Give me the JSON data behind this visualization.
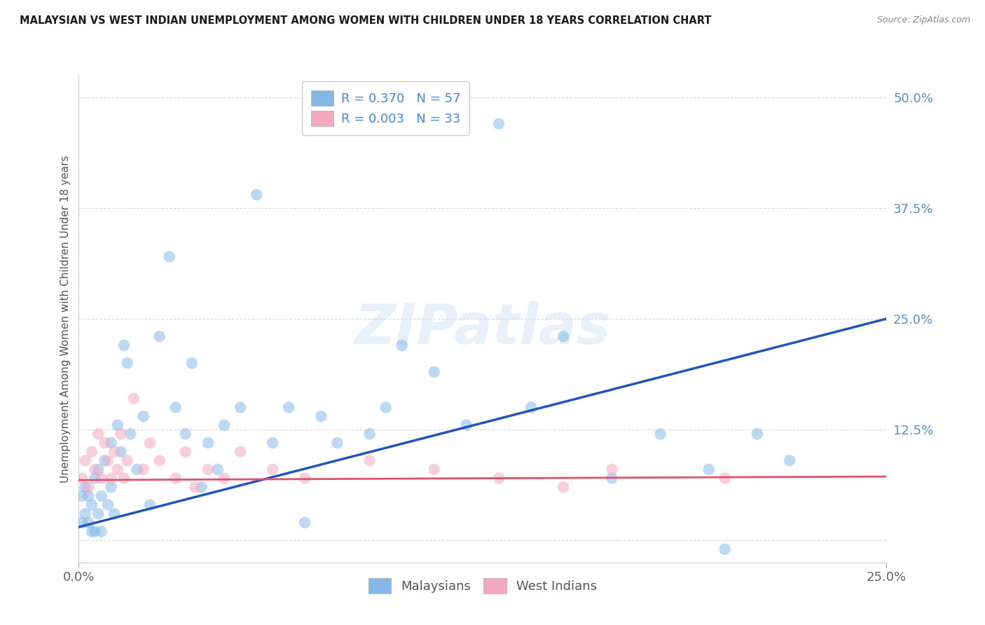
{
  "title": "MALAYSIAN VS WEST INDIAN UNEMPLOYMENT AMONG WOMEN WITH CHILDREN UNDER 18 YEARS CORRELATION CHART",
  "source": "Source: ZipAtlas.com",
  "ylabel": "Unemployment Among Women with Children Under 18 years",
  "xlim": [
    0.0,
    0.25
  ],
  "ylim": [
    -0.025,
    0.525
  ],
  "ytick_values": [
    0.0,
    0.125,
    0.25,
    0.375,
    0.5
  ],
  "ytick_labels": [
    "",
    "12.5%",
    "25.0%",
    "37.5%",
    "50.0%"
  ],
  "xtick_values": [
    0.0,
    0.25
  ],
  "xtick_labels": [
    "0.0%",
    "25.0%"
  ],
  "blue_r": 0.37,
  "pink_r": 0.003,
  "blue_n": 57,
  "pink_n": 33,
  "blue_scatter_color": "#85b8e8",
  "pink_scatter_color": "#f4a8c0",
  "blue_line_color": "#2255bb",
  "pink_line_color": "#e05070",
  "blue_line_x": [
    0.0,
    0.25
  ],
  "blue_line_y": [
    0.015,
    0.25
  ],
  "pink_line_x": [
    0.0,
    0.25
  ],
  "pink_line_y": [
    0.068,
    0.072
  ],
  "watermark_text": "ZIPatlas",
  "background_color": "#ffffff",
  "grid_color": "#cccccc",
  "title_color": "#1a1a1a",
  "source_color": "#888888",
  "ytick_color": "#5590cc",
  "xtick_color": "#666666",
  "ylabel_color": "#555555",
  "legend_text_color": "#333333",
  "legend_rn_color": "#4488dd",
  "malaysians_x": [
    0.001,
    0.001,
    0.002,
    0.002,
    0.003,
    0.003,
    0.004,
    0.004,
    0.005,
    0.005,
    0.006,
    0.006,
    0.007,
    0.007,
    0.008,
    0.009,
    0.01,
    0.01,
    0.011,
    0.012,
    0.013,
    0.014,
    0.015,
    0.016,
    0.018,
    0.02,
    0.022,
    0.025,
    0.028,
    0.03,
    0.033,
    0.035,
    0.038,
    0.04,
    0.043,
    0.045,
    0.05,
    0.055,
    0.06,
    0.065,
    0.07,
    0.075,
    0.08,
    0.09,
    0.095,
    0.1,
    0.11,
    0.12,
    0.13,
    0.14,
    0.15,
    0.165,
    0.18,
    0.195,
    0.2,
    0.21,
    0.22
  ],
  "malaysians_y": [
    0.02,
    0.05,
    0.03,
    0.06,
    0.02,
    0.05,
    0.01,
    0.04,
    0.07,
    0.01,
    0.03,
    0.08,
    0.05,
    0.01,
    0.09,
    0.04,
    0.11,
    0.06,
    0.03,
    0.13,
    0.1,
    0.22,
    0.2,
    0.12,
    0.08,
    0.14,
    0.04,
    0.23,
    0.32,
    0.15,
    0.12,
    0.2,
    0.06,
    0.11,
    0.08,
    0.13,
    0.15,
    0.39,
    0.11,
    0.15,
    0.02,
    0.14,
    0.11,
    0.12,
    0.15,
    0.22,
    0.19,
    0.13,
    0.47,
    0.15,
    0.23,
    0.07,
    0.12,
    0.08,
    -0.01,
    0.12,
    0.09
  ],
  "westindians_x": [
    0.001,
    0.002,
    0.003,
    0.004,
    0.005,
    0.006,
    0.007,
    0.008,
    0.009,
    0.01,
    0.011,
    0.012,
    0.013,
    0.014,
    0.015,
    0.017,
    0.02,
    0.022,
    0.025,
    0.03,
    0.033,
    0.036,
    0.04,
    0.045,
    0.05,
    0.06,
    0.07,
    0.09,
    0.11,
    0.13,
    0.15,
    0.165,
    0.2
  ],
  "westindians_y": [
    0.07,
    0.09,
    0.06,
    0.1,
    0.08,
    0.12,
    0.07,
    0.11,
    0.09,
    0.07,
    0.1,
    0.08,
    0.12,
    0.07,
    0.09,
    0.16,
    0.08,
    0.11,
    0.09,
    0.07,
    0.1,
    0.06,
    0.08,
    0.07,
    0.1,
    0.08,
    0.07,
    0.09,
    0.08,
    0.07,
    0.06,
    0.08,
    0.07
  ]
}
